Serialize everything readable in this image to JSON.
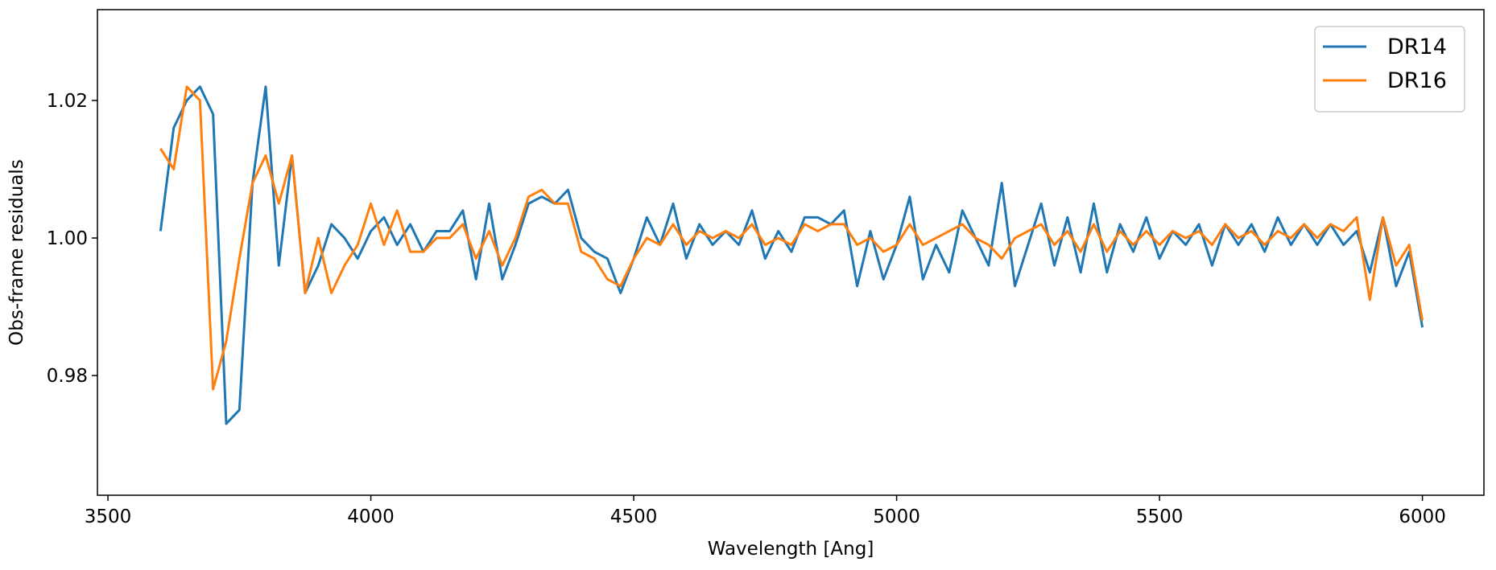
{
  "chart_data": {
    "type": "line",
    "xlabel": "Wavelength [Ang]",
    "ylabel": "Obs-frame residuals",
    "xlim": [
      3480,
      6117
    ],
    "ylim": [
      0.9626,
      1.0332
    ],
    "xticks": [
      3500,
      4000,
      4500,
      5000,
      5500,
      6000
    ],
    "yticks": [
      0.98,
      {
        "value": 1,
        "label": "1.00"
      },
      1.02
    ],
    "legend": "upper right",
    "x": [
      3600,
      3625,
      3650,
      3675,
      3700,
      3725,
      3750,
      3775,
      3800,
      3825,
      3850,
      3875,
      3900,
      3925,
      3950,
      3975,
      4000,
      4025,
      4050,
      4075,
      4100,
      4125,
      4150,
      4175,
      4200,
      4225,
      4250,
      4275,
      4300,
      4325,
      4350,
      4375,
      4400,
      4425,
      4450,
      4475,
      4500,
      4525,
      4550,
      4575,
      4600,
      4625,
      4650,
      4675,
      4700,
      4725,
      4750,
      4775,
      4800,
      4825,
      4850,
      4875,
      4900,
      4925,
      4950,
      4975,
      5000,
      5025,
      5050,
      5075,
      5100,
      5125,
      5150,
      5175,
      5200,
      5225,
      5250,
      5275,
      5300,
      5325,
      5350,
      5375,
      5400,
      5425,
      5450,
      5475,
      5500,
      5525,
      5550,
      5575,
      5600,
      5625,
      5650,
      5675,
      5700,
      5725,
      5750,
      5775,
      5800,
      5825,
      5850,
      5875,
      5900,
      5925,
      5950,
      5975,
      6000
    ],
    "series": [
      {
        "name": "DR14",
        "color": "#1f77b4",
        "values": [
          1.001,
          1.016,
          1.02,
          1.022,
          1.018,
          0.973,
          0.975,
          1.008,
          1.022,
          0.996,
          1.012,
          0.992,
          0.996,
          1.002,
          1.0,
          0.997,
          1.001,
          1.003,
          0.999,
          1.002,
          0.998,
          1.001,
          1.001,
          1.004,
          0.994,
          1.005,
          0.994,
          0.999,
          1.005,
          1.006,
          1.005,
          1.007,
          1.0,
          0.998,
          0.997,
          0.992,
          0.997,
          1.003,
          0.999,
          1.005,
          0.997,
          1.002,
          0.999,
          1.001,
          0.999,
          1.004,
          0.997,
          1.001,
          0.998,
          1.003,
          1.003,
          1.002,
          1.004,
          0.993,
          1.001,
          0.994,
          0.999,
          1.006,
          0.994,
          0.999,
          0.995,
          1.004,
          1.0,
          0.996,
          1.008,
          0.993,
          0.999,
          1.005,
          0.996,
          1.003,
          0.995,
          1.005,
          0.995,
          1.002,
          0.998,
          1.003,
          0.997,
          1.001,
          0.999,
          1.002,
          0.996,
          1.002,
          0.999,
          1.002,
          0.998,
          1.003,
          0.999,
          1.002,
          0.999,
          1.002,
          0.999,
          1.001,
          0.995,
          1.003,
          0.993,
          0.998,
          0.987
        ]
      },
      {
        "name": "DR16",
        "color": "#ff7f0e",
        "values": [
          1.013,
          1.01,
          1.022,
          1.02,
          0.978,
          0.985,
          0.997,
          1.008,
          1.012,
          1.005,
          1.012,
          0.992,
          1.0,
          0.992,
          0.996,
          0.999,
          1.005,
          0.999,
          1.004,
          0.998,
          0.998,
          1.0,
          1.0,
          1.002,
          0.997,
          1.001,
          0.996,
          1.0,
          1.006,
          1.007,
          1.005,
          1.005,
          0.998,
          0.997,
          0.994,
          0.993,
          0.997,
          1.0,
          0.999,
          1.002,
          0.999,
          1.001,
          1.0,
          1.001,
          1.0,
          1.002,
          0.999,
          1.0,
          0.999,
          1.002,
          1.001,
          1.002,
          1.002,
          0.999,
          1.0,
          0.998,
          0.999,
          1.002,
          0.999,
          1.0,
          1.001,
          1.002,
          1.0,
          0.999,
          0.997,
          1.0,
          1.001,
          1.002,
          0.999,
          1.001,
          0.998,
          1.002,
          0.998,
          1.001,
          0.999,
          1.001,
          0.999,
          1.001,
          1.0,
          1.001,
          0.999,
          1.002,
          1.0,
          1.001,
          0.999,
          1.001,
          1.0,
          1.002,
          1.0,
          1.002,
          1.001,
          1.003,
          0.991,
          1.003,
          0.996,
          0.999,
          0.988
        ]
      }
    ]
  }
}
